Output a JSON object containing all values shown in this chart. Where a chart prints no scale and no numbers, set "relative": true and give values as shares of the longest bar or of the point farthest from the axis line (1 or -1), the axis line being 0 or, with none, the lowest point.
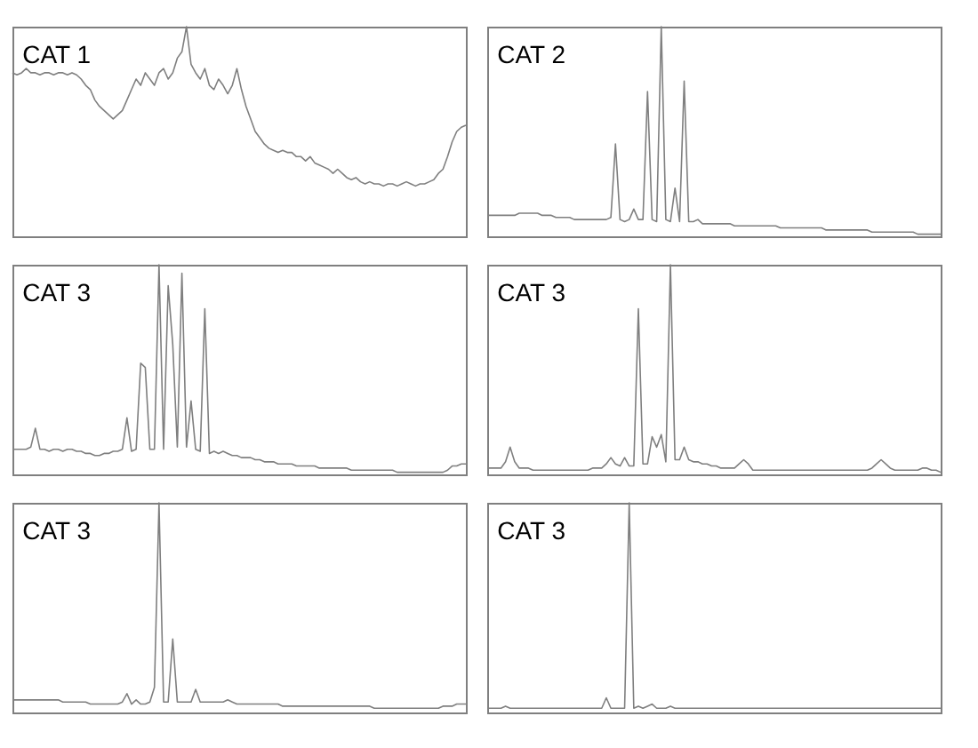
{
  "chart_data": [
    {
      "type": "line",
      "title": "CAT 1",
      "relative": true,
      "color": "#7f7f7f",
      "categories": [
        null,
        null,
        null,
        null,
        null,
        null,
        null,
        null,
        null,
        null,
        null,
        null,
        null,
        null,
        null,
        null,
        null,
        null,
        null,
        null,
        null,
        null,
        null,
        null,
        null,
        null,
        null,
        null,
        null,
        null,
        null,
        null,
        null,
        null,
        null,
        null,
        null,
        null,
        null,
        null,
        null,
        null,
        null,
        null,
        null,
        null,
        null,
        null,
        null,
        null,
        null,
        null,
        null,
        null,
        null,
        null,
        null,
        null,
        null,
        null,
        null,
        null,
        null,
        null,
        null,
        null,
        null,
        null,
        null,
        null,
        null,
        null,
        null,
        null,
        null,
        null,
        null,
        null,
        null,
        null,
        null,
        null,
        null,
        null,
        null,
        null,
        null,
        null,
        null,
        null,
        null,
        null,
        null,
        null,
        null,
        null,
        null,
        null,
        null,
        null
      ],
      "values": [
        0.78,
        0.77,
        0.78,
        0.8,
        0.78,
        0.78,
        0.77,
        0.78,
        0.78,
        0.77,
        0.78,
        0.78,
        0.77,
        0.78,
        0.77,
        0.75,
        0.72,
        0.7,
        0.65,
        0.62,
        0.6,
        0.58,
        0.56,
        0.58,
        0.6,
        0.65,
        0.7,
        0.75,
        0.72,
        0.78,
        0.75,
        0.72,
        0.78,
        0.8,
        0.75,
        0.78,
        0.85,
        0.88,
        1.0,
        0.82,
        0.78,
        0.75,
        0.8,
        0.72,
        0.7,
        0.75,
        0.72,
        0.68,
        0.72,
        0.8,
        0.7,
        0.62,
        0.56,
        0.5,
        0.47,
        0.44,
        0.42,
        0.41,
        0.4,
        0.41,
        0.4,
        0.4,
        0.38,
        0.38,
        0.36,
        0.38,
        0.35,
        0.34,
        0.33,
        0.32,
        0.3,
        0.32,
        0.3,
        0.28,
        0.27,
        0.28,
        0.26,
        0.25,
        0.26,
        0.25,
        0.25,
        0.24,
        0.25,
        0.25,
        0.24,
        0.25,
        0.26,
        0.25,
        0.24,
        0.25,
        0.25,
        0.26,
        0.27,
        0.3,
        0.32,
        0.38,
        0.45,
        0.5,
        0.52,
        0.53
      ]
    },
    {
      "type": "line",
      "title": "CAT 2",
      "relative": true,
      "color": "#7f7f7f",
      "categories": [
        null,
        null,
        null,
        null,
        null,
        null,
        null,
        null,
        null,
        null,
        null,
        null,
        null,
        null,
        null,
        null,
        null,
        null,
        null,
        null,
        null,
        null,
        null,
        null,
        null,
        null,
        null,
        null,
        null,
        null,
        null,
        null,
        null,
        null,
        null,
        null,
        null,
        null,
        null,
        null,
        null,
        null,
        null,
        null,
        null,
        null,
        null,
        null,
        null,
        null,
        null,
        null,
        null,
        null,
        null,
        null,
        null,
        null,
        null,
        null,
        null,
        null,
        null,
        null,
        null,
        null,
        null,
        null,
        null,
        null,
        null,
        null,
        null,
        null,
        null,
        null,
        null,
        null,
        null,
        null,
        null,
        null,
        null,
        null,
        null,
        null,
        null,
        null,
        null,
        null,
        null,
        null,
        null,
        null,
        null,
        null,
        null,
        null,
        null,
        null
      ],
      "values": [
        0.1,
        0.1,
        0.1,
        0.1,
        0.1,
        0.1,
        0.1,
        0.11,
        0.11,
        0.11,
        0.11,
        0.11,
        0.1,
        0.1,
        0.1,
        0.09,
        0.09,
        0.09,
        0.09,
        0.08,
        0.08,
        0.08,
        0.08,
        0.08,
        0.08,
        0.08,
        0.08,
        0.09,
        0.44,
        0.08,
        0.07,
        0.08,
        0.13,
        0.08,
        0.08,
        0.69,
        0.08,
        0.07,
        1.0,
        0.08,
        0.07,
        0.23,
        0.07,
        0.74,
        0.07,
        0.07,
        0.08,
        0.06,
        0.06,
        0.06,
        0.06,
        0.06,
        0.06,
        0.06,
        0.05,
        0.05,
        0.05,
        0.05,
        0.05,
        0.05,
        0.05,
        0.05,
        0.05,
        0.05,
        0.04,
        0.04,
        0.04,
        0.04,
        0.04,
        0.04,
        0.04,
        0.04,
        0.04,
        0.04,
        0.03,
        0.03,
        0.03,
        0.03,
        0.03,
        0.03,
        0.03,
        0.03,
        0.03,
        0.03,
        0.02,
        0.02,
        0.02,
        0.02,
        0.02,
        0.02,
        0.02,
        0.02,
        0.02,
        0.02,
        0.01,
        0.01,
        0.01,
        0.01,
        0.01,
        0.01
      ]
    },
    {
      "type": "line",
      "title": "CAT 3",
      "relative": true,
      "color": "#7f7f7f",
      "categories": [
        null,
        null,
        null,
        null,
        null,
        null,
        null,
        null,
        null,
        null,
        null,
        null,
        null,
        null,
        null,
        null,
        null,
        null,
        null,
        null,
        null,
        null,
        null,
        null,
        null,
        null,
        null,
        null,
        null,
        null,
        null,
        null,
        null,
        null,
        null,
        null,
        null,
        null,
        null,
        null,
        null,
        null,
        null,
        null,
        null,
        null,
        null,
        null,
        null,
        null,
        null,
        null,
        null,
        null,
        null,
        null,
        null,
        null,
        null,
        null,
        null,
        null,
        null,
        null,
        null,
        null,
        null,
        null,
        null,
        null,
        null,
        null,
        null,
        null,
        null,
        null,
        null,
        null,
        null,
        null,
        null,
        null,
        null,
        null,
        null,
        null,
        null,
        null,
        null,
        null,
        null,
        null,
        null,
        null,
        null,
        null,
        null,
        null,
        null,
        null
      ],
      "values": [
        0.12,
        0.12,
        0.12,
        0.12,
        0.13,
        0.22,
        0.12,
        0.12,
        0.11,
        0.12,
        0.12,
        0.11,
        0.12,
        0.12,
        0.11,
        0.11,
        0.1,
        0.1,
        0.09,
        0.09,
        0.1,
        0.1,
        0.11,
        0.11,
        0.12,
        0.27,
        0.11,
        0.12,
        0.53,
        0.51,
        0.12,
        0.12,
        1.0,
        0.12,
        0.9,
        0.62,
        0.13,
        0.96,
        0.13,
        0.35,
        0.12,
        0.11,
        0.79,
        0.1,
        0.11,
        0.1,
        0.11,
        0.1,
        0.09,
        0.09,
        0.08,
        0.08,
        0.08,
        0.07,
        0.07,
        0.06,
        0.06,
        0.06,
        0.05,
        0.05,
        0.05,
        0.05,
        0.04,
        0.04,
        0.04,
        0.04,
        0.04,
        0.03,
        0.03,
        0.03,
        0.03,
        0.03,
        0.03,
        0.03,
        0.02,
        0.02,
        0.02,
        0.02,
        0.02,
        0.02,
        0.02,
        0.02,
        0.02,
        0.02,
        0.01,
        0.01,
        0.01,
        0.01,
        0.01,
        0.01,
        0.01,
        0.01,
        0.01,
        0.01,
        0.01,
        0.02,
        0.04,
        0.04,
        0.05,
        0.05
      ]
    },
    {
      "type": "line",
      "title": "CAT 3",
      "relative": true,
      "color": "#7f7f7f",
      "categories": [
        null,
        null,
        null,
        null,
        null,
        null,
        null,
        null,
        null,
        null,
        null,
        null,
        null,
        null,
        null,
        null,
        null,
        null,
        null,
        null,
        null,
        null,
        null,
        null,
        null,
        null,
        null,
        null,
        null,
        null,
        null,
        null,
        null,
        null,
        null,
        null,
        null,
        null,
        null,
        null,
        null,
        null,
        null,
        null,
        null,
        null,
        null,
        null,
        null,
        null,
        null,
        null,
        null,
        null,
        null,
        null,
        null,
        null,
        null,
        null,
        null,
        null,
        null,
        null,
        null,
        null,
        null,
        null,
        null,
        null,
        null,
        null,
        null,
        null,
        null,
        null,
        null,
        null,
        null,
        null,
        null,
        null,
        null,
        null,
        null,
        null,
        null,
        null,
        null,
        null,
        null,
        null,
        null,
        null,
        null,
        null,
        null,
        null,
        null,
        null
      ],
      "values": [
        0.03,
        0.03,
        0.03,
        0.03,
        0.06,
        0.13,
        0.06,
        0.03,
        0.03,
        0.03,
        0.02,
        0.02,
        0.02,
        0.02,
        0.02,
        0.02,
        0.02,
        0.02,
        0.02,
        0.02,
        0.02,
        0.02,
        0.02,
        0.03,
        0.03,
        0.03,
        0.05,
        0.08,
        0.05,
        0.04,
        0.08,
        0.04,
        0.04,
        0.79,
        0.05,
        0.05,
        0.18,
        0.13,
        0.19,
        0.06,
        1.0,
        0.07,
        0.07,
        0.13,
        0.07,
        0.06,
        0.06,
        0.05,
        0.05,
        0.04,
        0.04,
        0.03,
        0.03,
        0.03,
        0.03,
        0.05,
        0.07,
        0.05,
        0.02,
        0.02,
        0.02,
        0.02,
        0.02,
        0.02,
        0.02,
        0.02,
        0.02,
        0.02,
        0.02,
        0.02,
        0.02,
        0.02,
        0.02,
        0.02,
        0.02,
        0.02,
        0.02,
        0.02,
        0.02,
        0.02,
        0.02,
        0.02,
        0.02,
        0.02,
        0.03,
        0.05,
        0.07,
        0.05,
        0.03,
        0.02,
        0.02,
        0.02,
        0.02,
        0.02,
        0.02,
        0.03,
        0.03,
        0.02,
        0.02,
        0.01
      ]
    },
    {
      "type": "line",
      "title": "CAT 3",
      "relative": true,
      "color": "#7f7f7f",
      "categories": [
        null,
        null,
        null,
        null,
        null,
        null,
        null,
        null,
        null,
        null,
        null,
        null,
        null,
        null,
        null,
        null,
        null,
        null,
        null,
        null,
        null,
        null,
        null,
        null,
        null,
        null,
        null,
        null,
        null,
        null,
        null,
        null,
        null,
        null,
        null,
        null,
        null,
        null,
        null,
        null,
        null,
        null,
        null,
        null,
        null,
        null,
        null,
        null,
        null,
        null,
        null,
        null,
        null,
        null,
        null,
        null,
        null,
        null,
        null,
        null,
        null,
        null,
        null,
        null,
        null,
        null,
        null,
        null,
        null,
        null,
        null,
        null,
        null,
        null,
        null,
        null,
        null,
        null,
        null,
        null,
        null,
        null,
        null,
        null,
        null,
        null,
        null,
        null,
        null,
        null,
        null,
        null,
        null,
        null,
        null,
        null,
        null,
        null,
        null,
        null
      ],
      "values": [
        0.06,
        0.06,
        0.06,
        0.06,
        0.06,
        0.06,
        0.06,
        0.06,
        0.06,
        0.06,
        0.06,
        0.05,
        0.05,
        0.05,
        0.05,
        0.05,
        0.05,
        0.04,
        0.04,
        0.04,
        0.04,
        0.04,
        0.04,
        0.04,
        0.05,
        0.09,
        0.04,
        0.06,
        0.04,
        0.04,
        0.05,
        0.12,
        1.0,
        0.05,
        0.05,
        0.35,
        0.05,
        0.05,
        0.05,
        0.05,
        0.11,
        0.05,
        0.05,
        0.05,
        0.05,
        0.05,
        0.05,
        0.06,
        0.05,
        0.04,
        0.04,
        0.04,
        0.04,
        0.04,
        0.04,
        0.04,
        0.04,
        0.04,
        0.04,
        0.03,
        0.03,
        0.03,
        0.03,
        0.03,
        0.03,
        0.03,
        0.03,
        0.03,
        0.03,
        0.03,
        0.03,
        0.03,
        0.03,
        0.03,
        0.03,
        0.03,
        0.03,
        0.03,
        0.03,
        0.02,
        0.02,
        0.02,
        0.02,
        0.02,
        0.02,
        0.02,
        0.02,
        0.02,
        0.02,
        0.02,
        0.02,
        0.02,
        0.02,
        0.02,
        0.03,
        0.03,
        0.03,
        0.04,
        0.04,
        0.04
      ]
    },
    {
      "type": "line",
      "title": "CAT 3",
      "relative": true,
      "color": "#7f7f7f",
      "categories": [
        null,
        null,
        null,
        null,
        null,
        null,
        null,
        null,
        null,
        null,
        null,
        null,
        null,
        null,
        null,
        null,
        null,
        null,
        null,
        null,
        null,
        null,
        null,
        null,
        null,
        null,
        null,
        null,
        null,
        null,
        null,
        null,
        null,
        null,
        null,
        null,
        null,
        null,
        null,
        null,
        null,
        null,
        null,
        null,
        null,
        null,
        null,
        null,
        null,
        null,
        null,
        null,
        null,
        null,
        null,
        null,
        null,
        null,
        null,
        null,
        null,
        null,
        null,
        null,
        null,
        null,
        null,
        null,
        null,
        null,
        null,
        null,
        null,
        null,
        null,
        null,
        null,
        null,
        null,
        null,
        null,
        null,
        null,
        null,
        null,
        null,
        null,
        null,
        null,
        null,
        null,
        null,
        null,
        null,
        null,
        null,
        null,
        null,
        null,
        null
      ],
      "values": [
        0.02,
        0.02,
        0.02,
        0.02,
        0.03,
        0.02,
        0.02,
        0.02,
        0.02,
        0.02,
        0.02,
        0.02,
        0.02,
        0.02,
        0.02,
        0.02,
        0.02,
        0.02,
        0.02,
        0.02,
        0.02,
        0.02,
        0.02,
        0.02,
        0.02,
        0.02,
        0.07,
        0.02,
        0.02,
        0.02,
        0.02,
        1.0,
        0.02,
        0.03,
        0.02,
        0.03,
        0.04,
        0.02,
        0.02,
        0.02,
        0.03,
        0.02,
        0.02,
        0.02,
        0.02,
        0.02,
        0.02,
        0.02,
        0.02,
        0.02,
        0.02,
        0.02,
        0.02,
        0.02,
        0.02,
        0.02,
        0.02,
        0.02,
        0.02,
        0.02,
        0.02,
        0.02,
        0.02,
        0.02,
        0.02,
        0.02,
        0.02,
        0.02,
        0.02,
        0.02,
        0.02,
        0.02,
        0.02,
        0.02,
        0.02,
        0.02,
        0.02,
        0.02,
        0.02,
        0.02,
        0.02,
        0.02,
        0.02,
        0.02,
        0.02,
        0.02,
        0.02,
        0.02,
        0.02,
        0.02,
        0.02,
        0.02,
        0.02,
        0.02,
        0.02,
        0.02,
        0.02,
        0.02,
        0.02,
        0.02
      ]
    }
  ]
}
